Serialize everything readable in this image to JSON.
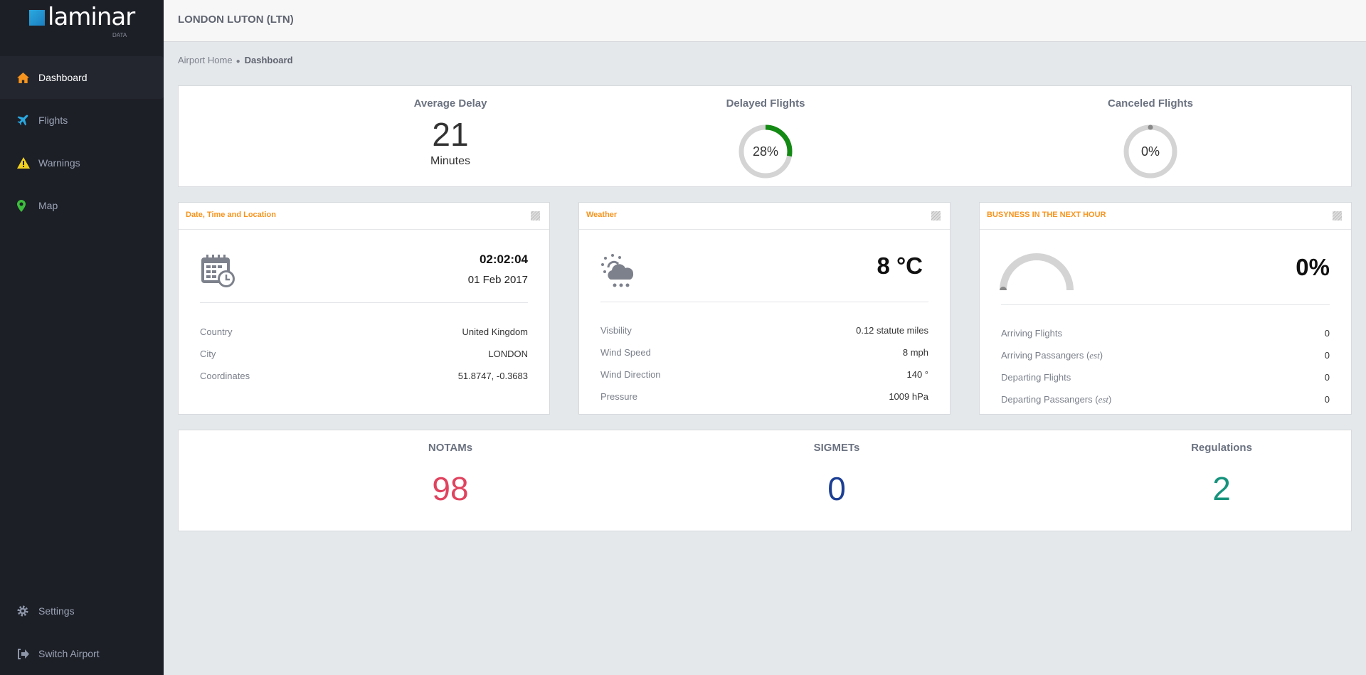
{
  "app": {
    "logo_text": "laminar",
    "logo_sub": "DATA"
  },
  "sidebar": {
    "items": [
      {
        "label": "Dashboard",
        "icon": "home-icon",
        "color": "#f7941d",
        "active": true
      },
      {
        "label": "Flights",
        "icon": "plane-icon",
        "color": "#2aa8e0"
      },
      {
        "label": "Warnings",
        "icon": "warning-icon",
        "color": "#f2d21f"
      },
      {
        "label": "Map",
        "icon": "map-marker-icon",
        "color": "#3cbf3c"
      }
    ],
    "bottom": [
      {
        "label": "Settings",
        "icon": "gear-icon"
      },
      {
        "label": "Switch Airport",
        "icon": "sign-out-icon"
      }
    ]
  },
  "header": {
    "title": "LONDON LUTON (LTN)"
  },
  "breadcrumb": {
    "home": "Airport Home",
    "current": "Dashboard"
  },
  "summary": {
    "avg_delay": {
      "label": "Average Delay",
      "value": "21",
      "unit": "Minutes"
    },
    "delayed": {
      "label": "Delayed Flights",
      "value_text": "28%",
      "percent": 28,
      "color": "#138a13"
    },
    "canceled": {
      "label": "Canceled Flights",
      "value_text": "0%",
      "percent": 0,
      "color": "#888888"
    }
  },
  "datetime": {
    "title": "Date, Time and Location",
    "time": "02:02:04",
    "date": "01 Feb 2017",
    "rows": [
      {
        "k": "Country",
        "v": "United Kingdom"
      },
      {
        "k": "City",
        "v": "LONDON"
      },
      {
        "k": "Coordinates",
        "v": "51.8747, -0.3683"
      }
    ]
  },
  "weather": {
    "title": "Weather",
    "temp": "8 °C",
    "icon": "cloud-sun-rain-icon",
    "rows": [
      {
        "k": "Visbility",
        "v": "0.12 statute miles"
      },
      {
        "k": "Wind Speed",
        "v": "8 mph"
      },
      {
        "k": "Wind Direction",
        "v": "140 °"
      },
      {
        "k": "Pressure",
        "v": "1009 hPa"
      }
    ]
  },
  "busyness": {
    "title": "BUSYNESS IN THE NEXT HOUR",
    "value_text": "0%",
    "percent": 0,
    "rows": [
      {
        "k": "Arriving Flights",
        "v": "0"
      },
      {
        "k": "Arriving Passangers",
        "est": "est",
        "v": "0"
      },
      {
        "k": "Departing Flights",
        "v": "0"
      },
      {
        "k": "Departing Passangers",
        "est": "est",
        "v": "0"
      }
    ]
  },
  "counts": {
    "notams": {
      "label": "NOTAMs",
      "value": "98",
      "color": "#e0435e"
    },
    "sigmets": {
      "label": "SIGMETs",
      "value": "0",
      "color": "#1c3f94"
    },
    "regulations": {
      "label": "Regulations",
      "value": "2",
      "color": "#17937d"
    }
  }
}
